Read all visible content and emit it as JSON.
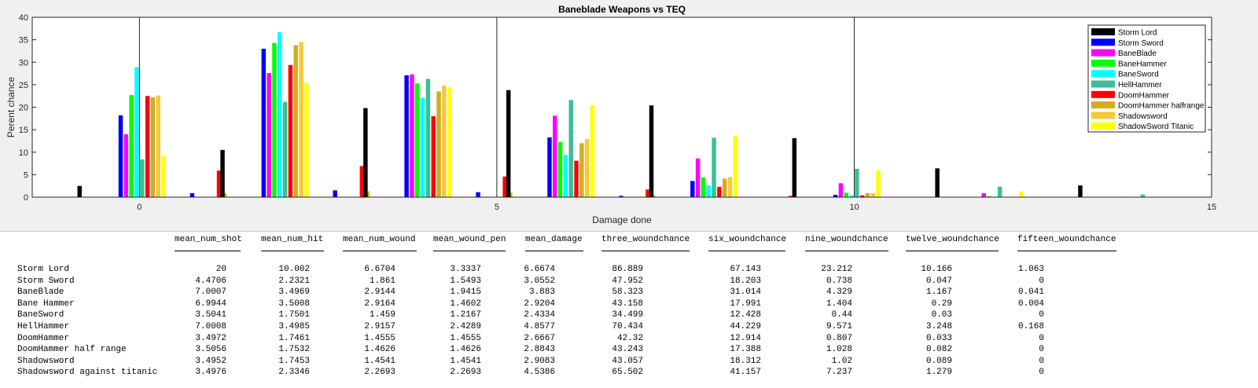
{
  "chart_data": {
    "type": "bar",
    "title": "Baneblade Weapons vs TEQ",
    "xlabel": "Damage done",
    "ylabel": "Perent chance",
    "xlim": [
      -1.5,
      15
    ],
    "ylim": [
      0,
      40
    ],
    "xticks": [
      0,
      5,
      10,
      15
    ],
    "yticks": [
      0,
      5,
      10,
      15,
      20,
      25,
      30,
      35,
      40
    ],
    "grid": "x-major",
    "legend_position": "top-right",
    "bar_group_width": 0.75,
    "x": [
      0,
      1,
      2,
      3,
      4,
      5,
      6,
      7,
      8,
      9,
      10,
      11,
      12,
      13,
      14
    ],
    "series": [
      {
        "name": "Storm Lord",
        "color": "#000000",
        "values": [
          0,
          0,
          0,
          0,
          0,
          0,
          0,
          0,
          0,
          0,
          0,
          0,
          0,
          0,
          0
        ]
      },
      {
        "name": "Storm Sword",
        "color": "#0000ff",
        "values": [
          18.2,
          0.9,
          33,
          1.5,
          27.1,
          1.1,
          13.3,
          0.3,
          3.6,
          0.05,
          0.5,
          0,
          0,
          0,
          0
        ]
      },
      {
        "name": "BaneBlade",
        "color": "#ff00ff",
        "values": [
          14,
          0,
          27.6,
          0,
          27.3,
          0,
          18.1,
          0,
          8.6,
          0,
          3.1,
          0,
          0.9,
          0,
          0.1
        ]
      },
      {
        "name": "BaneHammer",
        "color": "#00ff00",
        "values": [
          22.7,
          0,
          34.3,
          0,
          25.3,
          0,
          12.3,
          0,
          4.4,
          0,
          1,
          0,
          0.2,
          0,
          0
        ]
      },
      {
        "name": "BaneSword",
        "color": "#00ffff",
        "values": [
          28.9,
          0,
          36.7,
          0,
          22.1,
          0,
          9.4,
          0,
          2.6,
          0,
          0.4,
          0,
          0.03,
          0,
          0
        ]
      },
      {
        "name": "HellHammer",
        "color": "#3cbf96",
        "values": [
          8.4,
          0,
          21.2,
          0,
          26.3,
          0,
          21.6,
          0,
          13.2,
          0,
          6.3,
          0,
          2.3,
          0,
          0.6
        ]
      },
      {
        "name": "DoomHammer",
        "color": "#ff0000",
        "values": [
          22.5,
          5.9,
          29.4,
          6.9,
          18,
          4.6,
          8.1,
          1.7,
          2.3,
          0.3,
          0.4,
          0,
          0.03,
          0,
          0
        ]
      },
      {
        "name": "DoomHammer halfrange",
        "color": "#d4ac1c",
        "values": [
          22.2,
          0.9,
          33.8,
          1.3,
          23.5,
          1,
          12,
          0.4,
          4.1,
          0.1,
          0.9,
          0,
          0.1,
          0,
          0
        ]
      },
      {
        "name": "Shadowsword",
        "color": "#f5c93a",
        "values": [
          22.6,
          0,
          34.5,
          0,
          24.8,
          0,
          12.9,
          0,
          4.5,
          0,
          0.9,
          0,
          0.1,
          0,
          0
        ]
      },
      {
        "name": "ShadowSword Titanic",
        "color": "#ffff00",
        "values": [
          9.1,
          0,
          25.4,
          0,
          24.4,
          0,
          20.4,
          0,
          13.6,
          0,
          6,
          0,
          1.3,
          0,
          0
        ]
      }
    ],
    "storm_lord_offset": -0.5,
    "storm_lord_values": [
      2.5,
      10.5,
      19.8,
      23.8,
      20.4,
      13.1,
      6.4,
      2.6
    ]
  },
  "table": {
    "columns": [
      "mean_num_shot",
      "mean_num_hit",
      "mean_num_wound",
      "mean_wound_pen",
      "mean_damage",
      "three_woundchance",
      "six_woundchance",
      "nine_woundchance",
      "twelve_woundchance",
      "fifteen_woundchance"
    ],
    "rows": [
      {
        "name": "Storm Lord",
        "values": [
          "20",
          "10.002",
          "6.6704",
          "3.3337",
          "6.6674",
          "86.889",
          "67.143",
          "23.212",
          "10.166",
          "1.063"
        ]
      },
      {
        "name": "Storm Sword",
        "values": [
          "4.4706",
          "2.2321",
          "1.861",
          "1.5493",
          "3.0552",
          "47.952",
          "18.203",
          "0.738",
          "0.047",
          "0"
        ]
      },
      {
        "name": "BaneBlade",
        "values": [
          "7.0007",
          "3.4969",
          "2.9144",
          "1.9415",
          "3.883",
          "58.323",
          "31.014",
          "4.329",
          "1.167",
          "0.041"
        ]
      },
      {
        "name": "Bane Hammer",
        "values": [
          "6.9944",
          "3.5008",
          "2.9164",
          "1.4602",
          "2.9204",
          "43.158",
          "17.991",
          "1.404",
          "0.29",
          "0.004"
        ]
      },
      {
        "name": "BaneSword",
        "values": [
          "3.5041",
          "1.7501",
          "1.459",
          "1.2167",
          "2.4334",
          "34.499",
          "12.428",
          "0.44",
          "0.03",
          "0"
        ]
      },
      {
        "name": "HellHammer",
        "values": [
          "7.0008",
          "3.4985",
          "2.9157",
          "2.4289",
          "4.8577",
          "70.434",
          "44.229",
          "9.571",
          "3.248",
          "0.168"
        ]
      },
      {
        "name": "DoomHammer",
        "values": [
          "3.4972",
          "1.7461",
          "1.4555",
          "1.4555",
          "2.6667",
          "42.32",
          "12.914",
          "0.807",
          "0.033",
          "0"
        ]
      },
      {
        "name": "DoomHammer half range",
        "values": [
          "3.5056",
          "1.7532",
          "1.4626",
          "1.4626",
          "2.8843",
          "43.243",
          "17.388",
          "1.028",
          "0.082",
          "0"
        ]
      },
      {
        "name": "Shadowsword",
        "values": [
          "3.4952",
          "1.7453",
          "1.4541",
          "1.4541",
          "2.9083",
          "43.057",
          "18.312",
          "1.02",
          "0.089",
          "0"
        ]
      },
      {
        "name": "Shadowsword against titanic",
        "values": [
          "3.4976",
          "2.3346",
          "2.2693",
          "2.2693",
          "4.5386",
          "65.502",
          "41.157",
          "7.237",
          "1.279",
          "0"
        ]
      }
    ]
  }
}
